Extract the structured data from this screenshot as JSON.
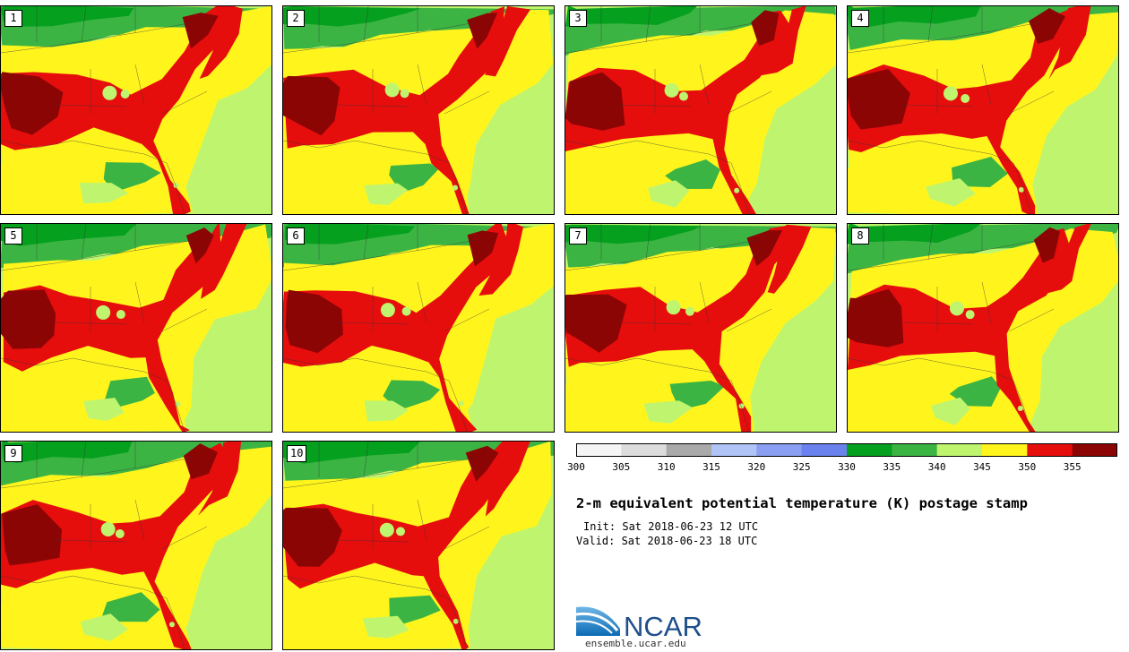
{
  "title": "2-m equivalent potential temperature (K) postage stamp",
  "init_text": "Init: Sat 2018-06-23 12 UTC",
  "valid_text": "Valid: Sat 2018-06-23 18 UTC",
  "members": [
    "1",
    "2",
    "3",
    "4",
    "5",
    "6",
    "7",
    "8",
    "9",
    "10"
  ],
  "colorbar": {
    "ticks": [
      "300",
      "305",
      "310",
      "315",
      "320",
      "325",
      "330",
      "335",
      "340",
      "345",
      "350",
      "355"
    ],
    "colors": [
      "#f5f5f5",
      "#dcdcdc",
      "#a9a9a9",
      "#b0c4f5",
      "#8a9ef2",
      "#6a82ee",
      "#04a01e",
      "#3cb443",
      "#bff56e",
      "#fff51c",
      "#e60d0d",
      "#8c0505"
    ]
  },
  "logo": {
    "text": "NCAR",
    "url": "ensemble.ucar.edu",
    "colors": {
      "blue": "#0b6bb5",
      "text": "#1e4f8c"
    }
  }
}
